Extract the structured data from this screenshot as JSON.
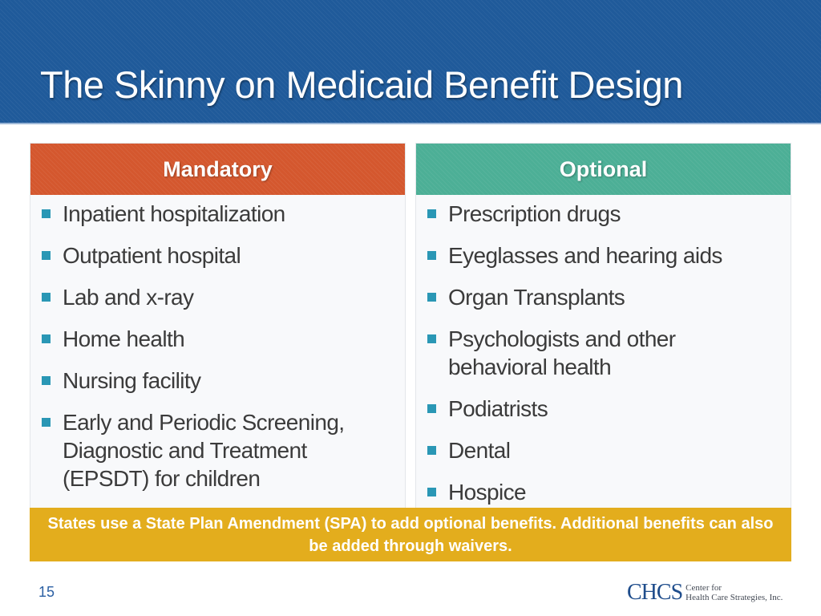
{
  "header": {
    "title": "The Skinny on Medicaid Benefit Design"
  },
  "mandatory": {
    "heading": "Mandatory",
    "items": [
      "Inpatient hospitalization",
      "Outpatient hospital",
      "Lab and x-ray",
      "Home health",
      "Nursing facility",
      "Early and Periodic Screening, Diagnostic and Treatment (EPSDT) for children"
    ]
  },
  "optional": {
    "heading": "Optional",
    "items": [
      "Prescription drugs",
      "Eyeglasses and hearing aids",
      "Organ Transplants",
      "Psychologists and other behavioral health",
      "Podiatrists",
      "Dental",
      "Hospice"
    ]
  },
  "banner": {
    "text": "States use a State Plan Amendment (SPA) to add optional benefits. Additional benefits can also be added through waivers."
  },
  "footer": {
    "page_number": "15",
    "logo_mark": "CHCS",
    "logo_line1": "Center for",
    "logo_line2": "Health Care Strategies, Inc."
  },
  "colors": {
    "header_blue": "#1f5a9a",
    "mandatory_orange": "#d4572e",
    "optional_teal": "#4caf96",
    "banner_gold": "#e3ad1d",
    "bullet_blue": "#2a97b5"
  },
  "icons": {
    "bullet": "square-bullet-icon"
  }
}
